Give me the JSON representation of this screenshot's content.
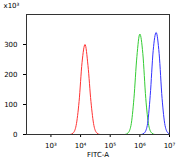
{
  "chart_data": {
    "type": "line",
    "x_label": "FITC-A",
    "y_label": "x10³",
    "log": "x",
    "grid": false,
    "xlim": [
      150,
      10000000
    ],
    "xticks": [
      {
        "value": 1000,
        "label": "10³"
      },
      {
        "value": 10000,
        "label": "10⁴"
      },
      {
        "value": 100000,
        "label": "10⁵"
      },
      {
        "value": 1000000,
        "label": "10⁶"
      },
      {
        "value": 10000000,
        "label": "10⁷"
      }
    ],
    "ylim": [
      0,
      400
    ],
    "yticks": [
      0,
      100,
      200,
      300
    ],
    "series": [
      {
        "color": "#ff3333",
        "x": [
          4467,
          5623,
          7079,
          8913,
          11220,
          14125,
          17783,
          22387,
          28184,
          35481,
          44668
        ],
        "values": [
          0,
          5,
          30,
          110,
          240,
          300,
          230,
          110,
          30,
          5,
          0
        ]
      },
      {
        "color": "#33cc33",
        "x": [
          316228,
          398107,
          501187,
          630957,
          794328,
          1000000,
          1258925,
          1584893,
          1995262,
          2511886,
          3162278
        ],
        "values": [
          0,
          5,
          30,
          120,
          260,
          335,
          270,
          120,
          30,
          5,
          0
        ]
      },
      {
        "color": "#3333ff",
        "x": [
          1122018,
          1412538,
          1778279,
          2238721,
          2818383,
          3548134,
          4466836,
          5623413,
          7079458,
          8912509,
          11220185
        ],
        "values": [
          0,
          5,
          30,
          130,
          280,
          340,
          270,
          120,
          30,
          5,
          0
        ]
      }
    ]
  }
}
